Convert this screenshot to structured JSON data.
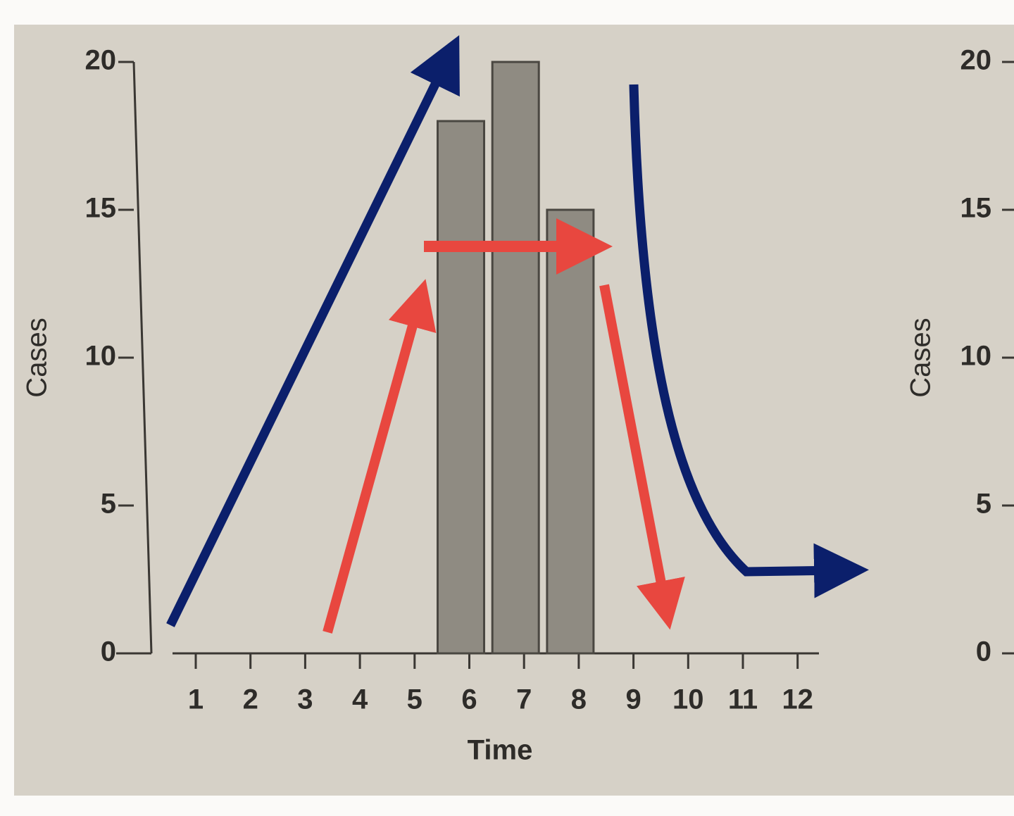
{
  "chart_data": [
    {
      "type": "bar",
      "x_label": "Time",
      "y_label": "Cases",
      "categories": [
        "1",
        "2",
        "3",
        "4",
        "5",
        "6",
        "7",
        "8",
        "9",
        "10",
        "11",
        "12"
      ],
      "values": [
        0,
        0,
        0,
        0,
        0,
        18,
        20,
        15,
        0,
        0,
        0,
        0
      ],
      "color": "#8f8b82",
      "ylim": [
        0,
        20
      ],
      "yticks": [
        0,
        5,
        10,
        15,
        20
      ]
    },
    {
      "type": "axis",
      "y_label": "Cases",
      "ylim": [
        0,
        20
      ],
      "yticks": [
        0,
        5,
        10,
        15,
        20
      ]
    }
  ]
}
